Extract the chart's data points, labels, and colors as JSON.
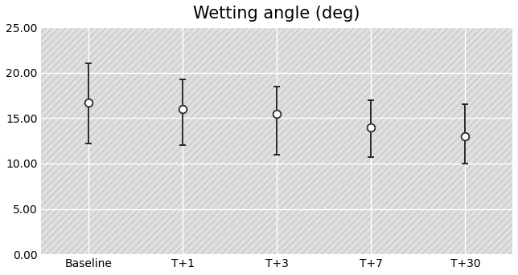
{
  "title": "Wetting angle (deg)",
  "categories": [
    "Baseline",
    "T+1",
    "T+3",
    "T+7",
    "T+30"
  ],
  "means": [
    16.7,
    16.0,
    15.5,
    14.0,
    13.0
  ],
  "lower_errors": [
    4.5,
    4.0,
    4.5,
    3.3,
    3.0
  ],
  "upper_errors": [
    4.3,
    3.3,
    3.0,
    3.0,
    3.5
  ],
  "ylim": [
    0.0,
    25.0
  ],
  "yticks": [
    0.0,
    5.0,
    10.0,
    15.0,
    20.0,
    25.0
  ],
  "line_color": "#2d2d2d",
  "marker_face_color": "white",
  "marker_edge_color": "#2d2d2d",
  "error_color": "#1a1a1a",
  "background_color": "#ffffff",
  "plot_bg_color": "#e0e0e0",
  "hatch_color": "#c8c8c8",
  "grid_color": "#ffffff",
  "title_fontsize": 15,
  "tick_fontsize": 10,
  "marker_size": 7,
  "line_width": 1.3,
  "cap_size": 3
}
